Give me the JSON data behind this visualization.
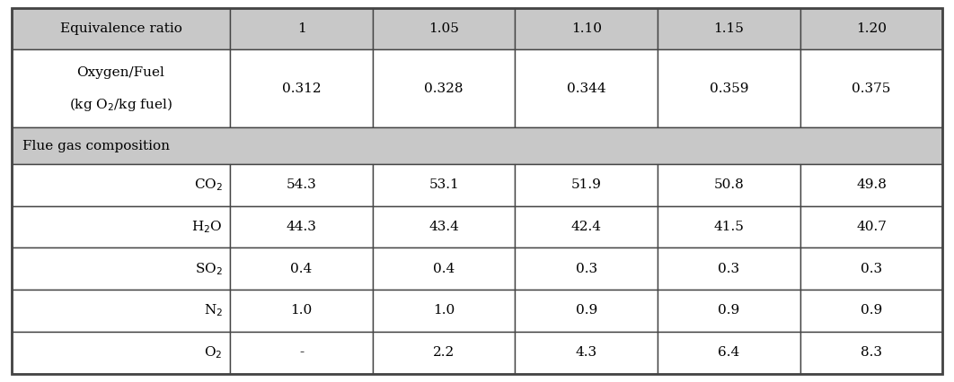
{
  "header_bg": "#c8c8c8",
  "white_bg": "#ffffff",
  "border_color": "#444444",
  "text_color": "#000000",
  "equivalence_ratios": [
    "1",
    "1.05",
    "1.10",
    "1.15",
    "1.20"
  ],
  "oxygen_fuel_values": [
    "0.312",
    "0.328",
    "0.344",
    "0.359",
    "0.375"
  ],
  "flue_gas_label": "Flue gas composition",
  "components": [
    {
      "name": "CO$_2$",
      "values": [
        "54.3",
        "53.1",
        "51.9",
        "50.8",
        "49.8"
      ]
    },
    {
      "name": "H$_2$O",
      "values": [
        "44.3",
        "43.4",
        "42.4",
        "41.5",
        "40.7"
      ]
    },
    {
      "name": "SO$_2$",
      "values": [
        "0.4",
        "0.4",
        "0.3",
        "0.3",
        "0.3"
      ]
    },
    {
      "name": "N$_2$",
      "values": [
        "1.0",
        "1.0",
        "0.9",
        "0.9",
        "0.9"
      ]
    },
    {
      "name": "O$_2$",
      "values": [
        "-",
        "2.2",
        "4.3",
        "6.4",
        "8.3"
      ]
    }
  ],
  "font_size": 11.0,
  "fig_width": 10.62,
  "fig_height": 4.26,
  "dpi": 100
}
